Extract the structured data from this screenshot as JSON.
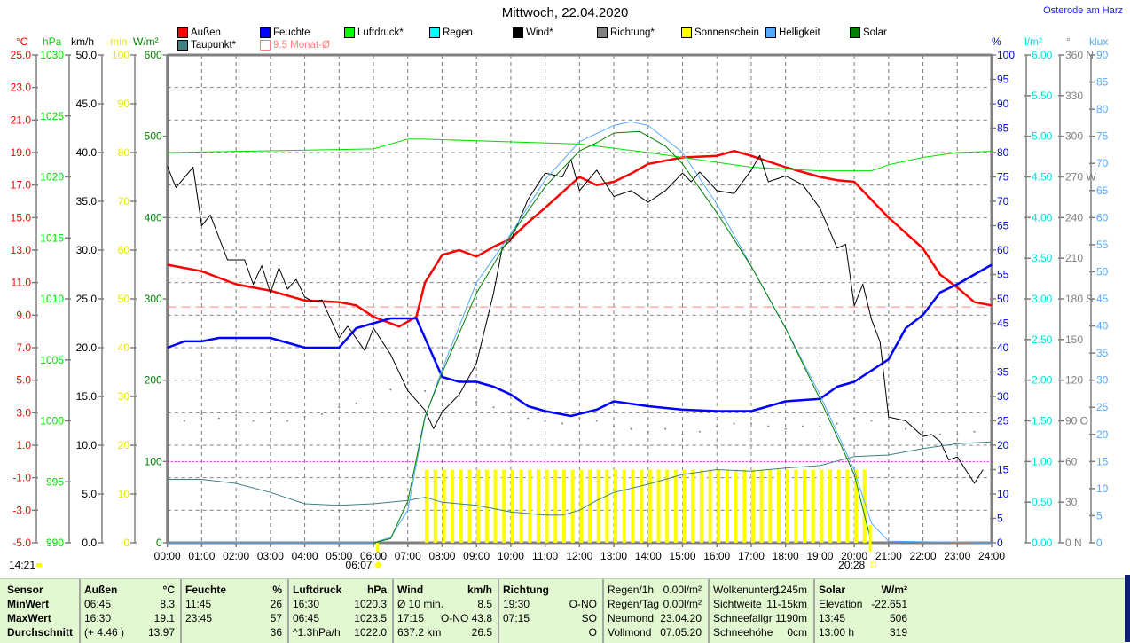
{
  "title": "Mittwoch, 22.04.2020",
  "location": "Osterode am Harz",
  "legend": [
    {
      "label": "Außen",
      "color": "#ff0000"
    },
    {
      "label": "Feuchte",
      "color": "#0000ff"
    },
    {
      "label": "Luftdruck*",
      "color": "#00ff00"
    },
    {
      "label": "Regen",
      "color": "#00ffff"
    },
    {
      "label": "Wind*",
      "color": "#000000"
    },
    {
      "label": "Richtung*",
      "color": "#808080"
    },
    {
      "label": "Sonnenschein",
      "color": "#ffff00"
    },
    {
      "label": "Helligkeit",
      "color": "#55aaff"
    },
    {
      "label": "Solar",
      "color": "#008000"
    },
    {
      "label": "Taupunkt*",
      "color": "#408080"
    },
    {
      "label": "9.5 Monat-Ø",
      "color": "#ff8080"
    }
  ],
  "chart_data": {
    "type": "line",
    "title": "Mittwoch, 22.04.2020",
    "x_ticks": [
      "00:00",
      "01:00",
      "02:00",
      "03:00",
      "04:00",
      "05:00",
      "06:00",
      "07:00",
      "08:00",
      "09:00",
      "10:00",
      "11:00",
      "12:00",
      "13:00",
      "14:00",
      "15:00",
      "16:00",
      "17:00",
      "18:00",
      "19:00",
      "20:00",
      "21:00",
      "22:00",
      "23:00",
      "24:00"
    ],
    "xlim": [
      0,
      24
    ],
    "grid": true,
    "markers": {
      "current_time": "14:21",
      "sunrise": "06:07",
      "sunset": "20:28",
      "sunrise_h": 6.117,
      "sunset_h": 20.467
    },
    "axes": {
      "temp": {
        "unit": "°C",
        "color": "#ff0000",
        "min": -5,
        "max": 25,
        "side": "left",
        "ticks": [
          "25.0",
          "23.0",
          "21.0",
          "19.0",
          "17.0",
          "15.0",
          "13.0",
          "11.0",
          "9.0",
          "7.0",
          "5.0",
          "3.0",
          "1.0",
          "-1.0",
          "-3.0",
          "-5.0"
        ]
      },
      "press": {
        "unit": "hPa",
        "color": "#00dd00",
        "min": 990,
        "max": 1030,
        "side": "left",
        "ticks": [
          "1030",
          "1025",
          "1020",
          "1015",
          "1010",
          "1005",
          "1000",
          "995",
          "990"
        ]
      },
      "wind": {
        "unit": "km/h",
        "color": "#000000",
        "min": 0,
        "max": 50,
        "side": "left",
        "ticks": [
          "50.0",
          "45.0",
          "40.0",
          "35.0",
          "30.0",
          "25.0",
          "20.0",
          "15.0",
          "10.0",
          "5.0",
          "0.0"
        ]
      },
      "sun": {
        "unit": "min",
        "color": "#e8e800",
        "min": 0,
        "max": 100,
        "side": "left",
        "ticks": [
          "100",
          "90",
          "80",
          "70",
          "60",
          "50",
          "40",
          "30",
          "20",
          "10",
          "0"
        ]
      },
      "solar": {
        "unit": "W/m²",
        "color": "#008000",
        "min": 0,
        "max": 600,
        "side": "left",
        "ticks": [
          "600",
          "500",
          "400",
          "300",
          "200",
          "100",
          "0"
        ]
      },
      "hum": {
        "unit": "%",
        "color": "#0000ff",
        "min": 0,
        "max": 100,
        "side": "right",
        "ticks": [
          "100",
          "95",
          "90",
          "85",
          "80",
          "75",
          "70",
          "65",
          "60",
          "55",
          "50",
          "45",
          "40",
          "35",
          "30",
          "25",
          "20",
          "15",
          "10",
          "5",
          "0"
        ]
      },
      "rain": {
        "unit": "l/m²",
        "color": "#00e0e0",
        "min": 0,
        "max": 6,
        "side": "right",
        "ticks": [
          "6.00",
          "5.50",
          "5.00",
          "4.50",
          "4.00",
          "3.50",
          "3.00",
          "2.50",
          "2.00",
          "1.50",
          "1.00",
          "0.50",
          "0.00"
        ]
      },
      "dir": {
        "unit": "°",
        "color": "#808080",
        "min": 0,
        "max": 360,
        "side": "right",
        "ticks": [
          "360 N",
          "330",
          "300",
          "270 W",
          "240",
          "210",
          "180 S",
          "150",
          "120",
          "90 O",
          "60",
          "30",
          "0 N"
        ]
      },
      "lux": {
        "unit": "klux",
        "color": "#55aaff",
        "min": 0,
        "max": 90,
        "side": "right",
        "ticks": [
          "90",
          "85",
          "80",
          "75",
          "70",
          "65",
          "60",
          "55",
          "50",
          "45",
          "40",
          "35",
          "30",
          "25",
          "20",
          "15",
          "10",
          "5",
          "0"
        ]
      }
    },
    "reference_lines": [
      {
        "name": "Monat-Ø",
        "axis": "temp",
        "value": 9.5,
        "color": "#ff8080",
        "style": "dashed"
      },
      {
        "name": "Solar-100",
        "axis": "solar",
        "value": 100,
        "color": "#ff00ff",
        "style": "dotted"
      }
    ],
    "sunshine": {
      "axis": "sun",
      "x_start": 7.5,
      "x_step": 0.25,
      "color": "#ffff00",
      "values": [
        15,
        15,
        15,
        15,
        15,
        15,
        15,
        15,
        15,
        15,
        15,
        15,
        15,
        15,
        15,
        15,
        15,
        15,
        15,
        15,
        15,
        15,
        15,
        15,
        15,
        15,
        15,
        15,
        15,
        15,
        15,
        15,
        15,
        15,
        15,
        15,
        15,
        15,
        15,
        15,
        15,
        15,
        15,
        15,
        15,
        15,
        15,
        15,
        15,
        15,
        15,
        15
      ]
    },
    "direction": {
      "axis": "dir",
      "color": "#808080",
      "x": [
        0,
        0.5,
        1,
        1.5,
        2,
        2.5,
        3,
        3.5,
        4,
        4.5,
        5,
        5.5,
        6,
        6.5,
        7,
        7.5,
        8,
        8.5,
        9,
        9.5,
        10,
        10.5,
        11,
        11.5,
        12,
        12.5,
        13,
        13.5,
        14,
        14.5,
        15,
        15.5,
        16,
        16.5,
        17,
        17.5,
        18,
        18.5,
        19,
        19.5,
        20,
        20.5,
        21,
        21.5,
        22,
        22.5,
        23,
        23.5
      ],
      "values": [
        92,
        90,
        95,
        92,
        94,
        90,
        92,
        90,
        93,
        95,
        100,
        103,
        108,
        113,
        118,
        112,
        112,
        108,
        104,
        100,
        96,
        92,
        90,
        88,
        92,
        90,
        86,
        84,
        82,
        84,
        80,
        82,
        86,
        88,
        88,
        86,
        84,
        86,
        86,
        88,
        92,
        90,
        86,
        84,
        82,
        80,
        80,
        82
      ]
    },
    "series": [
      {
        "name": "Außen",
        "axis": "temp",
        "color": "#ff0000",
        "width": 2.5,
        "x": [
          0,
          1,
          2,
          3,
          4,
          5,
          5.5,
          6,
          6.75,
          7.25,
          7.5,
          8,
          8.5,
          9,
          9.5,
          10,
          10.5,
          11,
          12,
          12.5,
          13,
          13.5,
          14,
          15,
          16,
          16.5,
          17,
          18,
          19,
          19.5,
          20,
          20.5,
          21,
          22,
          22.5,
          23,
          23.5,
          24
        ],
        "values": [
          12.1,
          11.7,
          10.9,
          10.5,
          9.9,
          9.8,
          9.6,
          8.9,
          8.3,
          8.9,
          11.0,
          12.7,
          13.0,
          12.6,
          13.2,
          13.7,
          14.7,
          15.6,
          17.5,
          17.0,
          17.2,
          17.7,
          18.3,
          18.7,
          18.8,
          19.1,
          18.8,
          18.1,
          17.5,
          17.3,
          17.2,
          16.1,
          15.0,
          13.1,
          11.5,
          10.7,
          9.8,
          9.6
        ]
      },
      {
        "name": "Feuchte",
        "axis": "hum",
        "color": "#0000ff",
        "width": 2.5,
        "x": [
          0,
          0.5,
          1,
          1.5,
          2,
          3,
          4,
          5,
          5.5,
          6,
          6.5,
          7.25,
          8,
          8.5,
          9,
          9.5,
          10,
          10.5,
          11,
          11.75,
          12.5,
          13,
          14,
          15,
          16,
          17,
          18,
          19,
          19.5,
          20,
          21,
          21.5,
          22,
          22.5,
          23,
          23.5,
          24
        ],
        "values": [
          40,
          41.3,
          41.3,
          42,
          42,
          42,
          40,
          40,
          44,
          45,
          46,
          46,
          34,
          33,
          33,
          32,
          30.4,
          28,
          27,
          26,
          27.3,
          29,
          28,
          27.3,
          27,
          27,
          29,
          29.5,
          32,
          33,
          37.6,
          44,
          46.7,
          51.3,
          53,
          55,
          57
        ]
      },
      {
        "name": "Luftdruck*",
        "axis": "press",
        "color": "#00e000",
        "width": 1,
        "x": [
          0,
          6,
          7,
          7.5,
          12,
          14,
          16,
          17,
          19,
          20.5,
          21,
          22,
          23,
          24
        ],
        "values": [
          1022.0,
          1022.3,
          1023.1,
          1023.1,
          1022.7,
          1022.0,
          1021.2,
          1020.8,
          1020.5,
          1020.5,
          1021.0,
          1021.6,
          1022.0,
          1022.1
        ]
      },
      {
        "name": "Wind*",
        "axis": "wind",
        "color": "#000000",
        "width": 1,
        "x": [
          0,
          0.25,
          0.75,
          1,
          1.25,
          1.75,
          2,
          2.25,
          2.5,
          2.75,
          3,
          3.25,
          3.5,
          3.75,
          4,
          4.25,
          4.5,
          5,
          5.25,
          5.75,
          6,
          6.5,
          7,
          7.5,
          7.75,
          8,
          8.5,
          9,
          9.5,
          9.75,
          10,
          10.5,
          11,
          11.5,
          11.75,
          12,
          12.5,
          13,
          13.5,
          14,
          14.5,
          15,
          15.25,
          15.5,
          16,
          16.5,
          17,
          17.25,
          17.5,
          18,
          18.5,
          19,
          19.5,
          19.75,
          20,
          20.25,
          20.5,
          20.75,
          21,
          21.5,
          22,
          22.25,
          22.5,
          22.75,
          23,
          23.5,
          23.75
        ],
        "values": [
          38.6,
          36.4,
          38.5,
          32.5,
          33.6,
          29,
          29,
          29,
          26.5,
          28.4,
          25.6,
          28.2,
          26,
          27,
          25.2,
          24.7,
          24.9,
          21,
          22.2,
          19.7,
          22,
          19.3,
          15.6,
          13.6,
          11.7,
          13.4,
          15.2,
          18.4,
          25.6,
          30.2,
          31,
          35.2,
          37.9,
          37.5,
          39.3,
          36.1,
          38.2,
          35.5,
          36.1,
          34.9,
          36.1,
          37.9,
          37,
          38,
          36.1,
          35.8,
          38.2,
          39.7,
          37,
          37.6,
          36.7,
          34.3,
          30.2,
          30.6,
          24.3,
          26.5,
          22.9,
          20.6,
          12.9,
          12.5,
          10.9,
          11.1,
          10.4,
          8.5,
          8.8,
          6.1,
          7.5
        ]
      },
      {
        "name": "Taupunkt*",
        "axis": "temp",
        "color": "#408080",
        "width": 1,
        "x": [
          0,
          1,
          2,
          3,
          4,
          5,
          6,
          7,
          7.5,
          8,
          9,
          10,
          11,
          11.5,
          12,
          12.5,
          13,
          14,
          15,
          16,
          17,
          18,
          19,
          20,
          21,
          22,
          23,
          24
        ],
        "values": [
          -1.1,
          -1.1,
          -1.35,
          -1.9,
          -2.6,
          -2.7,
          -2.6,
          -2.4,
          -2.2,
          -2.5,
          -2.7,
          -3.1,
          -3.3,
          -3.3,
          -3.0,
          -2.4,
          -1.9,
          -1.4,
          -0.8,
          -0.5,
          -0.6,
          -0.4,
          -0.25,
          0.3,
          0.4,
          0.8,
          1.1,
          1.2
        ]
      },
      {
        "name": "Helligkeit",
        "axis": "lux",
        "color": "#55aaff",
        "width": 1,
        "x": [
          0,
          6,
          6.5,
          7,
          7.5,
          8,
          9,
          10,
          11,
          12,
          13,
          13.5,
          14,
          15,
          16,
          17,
          18,
          19,
          20,
          20.5,
          21,
          24
        ],
        "values": [
          0,
          0,
          1,
          6,
          23,
          32,
          48,
          57,
          67,
          74,
          77,
          77.7,
          77,
          72,
          62.5,
          51,
          39.6,
          27.3,
          13.4,
          3.6,
          0.3,
          0
        ]
      },
      {
        "name": "Solar",
        "axis": "solar",
        "color": "#008000",
        "width": 1,
        "x": [
          6,
          6.5,
          7,
          7.5,
          8,
          9,
          10,
          11,
          12,
          12.5,
          13,
          13.75,
          14,
          14.5,
          15,
          16,
          17,
          18,
          19,
          20,
          20.5
        ],
        "values": [
          0,
          5,
          51,
          155,
          209,
          307,
          378,
          438,
          482,
          492,
          504,
          506,
          500,
          488,
          466,
          406,
          340,
          264,
          177,
          84,
          0
        ]
      }
    ]
  },
  "table": {
    "labels": {
      "header": "Sensor",
      "rows": [
        "MinWert",
        "MaxWert",
        "Durchschnitt"
      ]
    },
    "groups": [
      {
        "title": "Außen",
        "unit": "°C",
        "rows": [
          [
            "06:45",
            "8.3"
          ],
          [
            "16:30",
            "19.1"
          ],
          [
            "(+ 4.46 )",
            "13.97"
          ]
        ]
      },
      {
        "title": "Feuchte",
        "unit": "%",
        "rows": [
          [
            "11:45",
            "26"
          ],
          [
            "23:45",
            "57"
          ],
          [
            "",
            "36"
          ]
        ]
      },
      {
        "title": "Luftdruck",
        "unit": "hPa",
        "rows": [
          [
            "16:30",
            "1020.3"
          ],
          [
            "06:45",
            "1023.5"
          ],
          [
            "^1.3hPa/h",
            "1022.0"
          ]
        ]
      },
      {
        "title": "Wind",
        "unit": "km/h",
        "rows": [
          [
            "Ø 10 min.",
            "8.5"
          ],
          [
            "17:15",
            "O-NO 43.8"
          ],
          [
            "637.2 km",
            "26.5"
          ]
        ]
      },
      {
        "title": "Richtung",
        "unit": "",
        "rows": [
          [
            "19:30",
            "O-NO"
          ],
          [
            "07:15",
            "SO"
          ],
          [
            "",
            "O"
          ]
        ]
      }
    ],
    "misc1": [
      [
        "Regen/1h",
        "0.00l/m²"
      ],
      [
        "Regen/Tag",
        "0.00l/m²"
      ],
      [
        "Neumond",
        "23.04.20"
      ],
      [
        "Vollmond",
        "07.05.20"
      ]
    ],
    "misc2": [
      [
        "Wolkenunterg",
        "1245m"
      ],
      [
        "Sichtweite",
        "11-15km"
      ],
      [
        "Schneefallgr",
        "1190m"
      ],
      [
        "Schneehöhe",
        "0cm"
      ]
    ],
    "solar": {
      "title": "Solar",
      "unit": "W/m²",
      "rows": [
        [
          "Elevation",
          "-22.651"
        ],
        [
          "13:45",
          "506"
        ],
        [
          "13:00 h",
          "319"
        ]
      ]
    }
  }
}
